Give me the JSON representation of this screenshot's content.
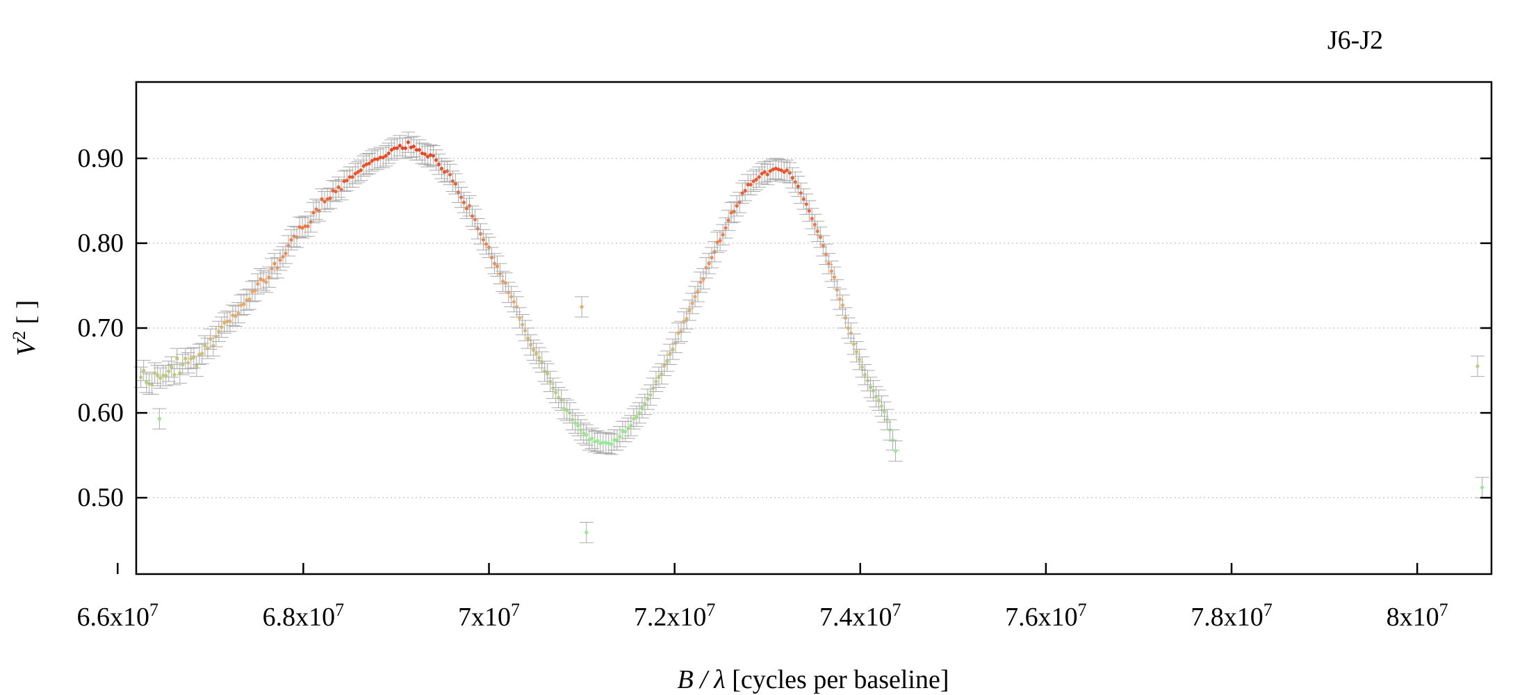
{
  "chart_data": {
    "type": "scatter",
    "title": "J6-J2",
    "xlabel": {
      "var": "B / λ",
      "rest": " [cycles per baseline]"
    },
    "ylabel": {
      "var": "V",
      "sup": "2",
      "rest": " [ ]"
    },
    "xlim": [
      66200000,
      80800000
    ],
    "ylim": [
      0.41,
      0.99
    ],
    "x_ticks": [
      {
        "value": 66000000,
        "mantissa": "6.6x10",
        "exp": "7"
      },
      {
        "value": 68000000,
        "mantissa": "6.8x10",
        "exp": "7"
      },
      {
        "value": 70000000,
        "mantissa": "7x10",
        "exp": "7"
      },
      {
        "value": 72000000,
        "mantissa": "7.2x10",
        "exp": "7"
      },
      {
        "value": 74000000,
        "mantissa": "7.4x10",
        "exp": "7"
      },
      {
        "value": 76000000,
        "mantissa": "7.6x10",
        "exp": "7"
      },
      {
        "value": 78000000,
        "mantissa": "7.8x10",
        "exp": "7"
      },
      {
        "value": 80000000,
        "mantissa": "8x10",
        "exp": "7"
      }
    ],
    "y_ticks": [
      {
        "value": 0.5,
        "label": "0.50"
      },
      {
        "value": 0.6,
        "label": "0.60"
      },
      {
        "value": 0.7,
        "label": "0.70"
      },
      {
        "value": 0.8,
        "label": "0.80"
      },
      {
        "value": 0.9,
        "label": "0.90"
      }
    ],
    "grid": "horizontal dotted",
    "color_scale": {
      "low": "#90ee90",
      "mid": "#f4a460",
      "high": "#e8401c",
      "error_bar": "#aaaaaa"
    },
    "series": [
      {
        "x_start": 66250000,
        "x_step": 30000,
        "error": 0.012,
        "values": [
          0.642,
          0.65,
          0.636,
          0.634,
          0.634,
          0.647,
          0.644,
          0.641,
          0.644,
          0.644,
          0.649,
          0.654,
          0.645,
          0.664,
          0.647,
          0.657,
          0.664,
          0.659,
          0.664,
          0.665,
          0.655,
          0.669,
          0.67,
          0.679,
          0.676,
          0.687,
          0.679,
          0.69,
          0.696,
          0.701,
          0.706,
          0.708,
          0.708,
          0.715,
          0.714,
          0.718,
          0.727,
          0.728,
          0.733,
          0.734,
          0.743,
          0.744,
          0.752,
          0.758,
          0.756,
          0.754,
          0.76,
          0.77,
          0.776,
          0.771,
          0.78,
          0.784,
          0.788,
          0.797,
          0.804,
          0.808,
          0.807,
          0.819,
          0.818,
          0.82,
          0.82,
          0.825,
          0.836,
          0.84,
          0.838,
          0.852,
          0.849,
          0.852,
          0.853,
          0.862,
          0.861,
          0.866,
          0.863,
          0.873,
          0.874,
          0.878,
          0.878,
          0.882,
          0.884,
          0.886,
          0.891,
          0.893,
          0.894,
          0.897,
          0.899,
          0.899,
          0.901,
          0.901,
          0.903,
          0.906,
          0.91,
          0.912,
          0.912,
          0.915,
          0.912,
          0.912,
          0.919,
          0.913,
          0.914,
          0.91,
          0.91,
          0.906,
          0.905,
          0.902,
          0.904,
          0.903,
          0.898,
          0.893,
          0.888,
          0.884,
          0.885,
          0.881,
          0.873,
          0.87,
          0.86,
          0.854,
          0.848,
          0.841,
          0.844,
          0.832,
          0.828,
          0.817,
          0.811,
          0.804,
          0.799,
          0.795,
          0.783,
          0.776,
          0.773,
          0.764,
          0.755,
          0.753,
          0.742,
          0.737,
          0.731,
          0.725,
          0.712,
          0.704,
          0.697,
          0.688,
          0.68,
          0.674,
          0.67,
          0.665,
          0.66,
          0.649,
          0.646,
          0.637,
          0.629,
          0.624,
          0.618,
          0.615,
          0.605,
          0.603,
          0.6,
          0.592,
          0.588,
          0.585,
          0.58,
          0.576,
          0.574,
          0.568,
          0.57,
          0.566,
          0.567,
          0.564,
          0.565,
          0.565,
          0.564,
          0.563,
          0.568,
          0.568,
          0.572,
          0.578,
          0.578,
          0.582,
          0.585,
          0.593,
          0.596,
          0.6,
          0.606,
          0.61,
          0.616,
          0.621,
          0.629,
          0.637,
          0.642,
          0.646,
          0.656,
          0.661,
          0.669,
          0.675,
          0.683,
          0.694,
          0.696,
          0.707,
          0.711,
          0.721,
          0.729,
          0.737,
          0.743,
          0.754,
          0.758,
          0.771,
          0.776,
          0.783,
          0.79,
          0.801,
          0.803,
          0.81,
          0.818,
          0.827,
          0.836,
          0.837,
          0.844,
          0.848,
          0.859,
          0.862,
          0.869,
          0.869,
          0.873,
          0.875,
          0.878,
          0.882,
          0.884,
          0.881,
          0.885,
          0.887,
          0.888,
          0.887,
          0.886,
          0.884,
          0.886,
          0.883,
          0.877,
          0.872,
          0.867,
          0.859,
          0.852,
          0.846,
          0.838,
          0.829,
          0.822,
          0.814,
          0.807,
          0.797,
          0.787,
          0.776,
          0.767,
          0.76,
          0.745,
          0.734,
          0.727,
          0.712,
          0.7,
          0.694,
          0.681,
          0.672,
          0.663,
          0.654,
          0.645,
          0.638,
          0.63,
          0.626,
          0.619,
          0.615,
          0.608,
          0.601,
          0.592,
          0.58,
          0.568,
          0.555
        ],
        "outliers": [
          {
            "x": 71050000,
            "y": 0.459
          },
          {
            "x": 71000000,
            "y": 0.725
          },
          {
            "x": 80650000,
            "y": 0.655
          },
          {
            "x": 80700000,
            "y": 0.512
          },
          {
            "x": 66450000,
            "y": 0.593
          }
        ]
      }
    ]
  }
}
